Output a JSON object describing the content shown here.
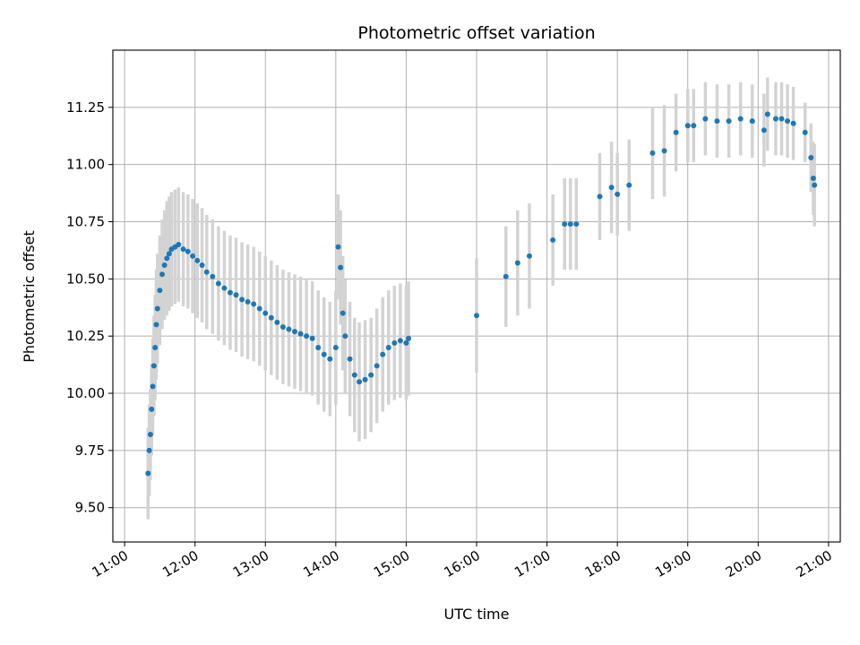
{
  "chart_data": {
    "type": "scatter",
    "title": "Photometric offset variation",
    "xlabel": "UTC time",
    "ylabel": "Photometric offset",
    "xlim": [
      "10:50",
      "21:10"
    ],
    "ylim": [
      9.35,
      11.5
    ],
    "x_ticks": [
      "11:00",
      "12:00",
      "13:00",
      "14:00",
      "15:00",
      "16:00",
      "17:00",
      "18:00",
      "19:00",
      "20:00",
      "21:00"
    ],
    "y_ticks": [
      9.5,
      9.75,
      10.0,
      10.25,
      10.5,
      10.75,
      11.0,
      11.25
    ],
    "grid": true,
    "colors": {
      "points": "#1f77b4",
      "error_bars": "#d3d3d3"
    },
    "series": [
      {
        "style": "points with error bars",
        "points": [
          {
            "x": "11:20",
            "y": 9.65,
            "err": 0.2
          },
          {
            "x": "11:21",
            "y": 9.75,
            "err": 0.2
          },
          {
            "x": "11:22",
            "y": 9.82,
            "err": 0.2
          },
          {
            "x": "11:23",
            "y": 9.93,
            "err": 0.2
          },
          {
            "x": "11:24",
            "y": 10.03,
            "err": 0.21
          },
          {
            "x": "11:25",
            "y": 10.12,
            "err": 0.22
          },
          {
            "x": "11:26",
            "y": 10.2,
            "err": 0.23
          },
          {
            "x": "11:27",
            "y": 10.3,
            "err": 0.24
          },
          {
            "x": "11:28",
            "y": 10.37,
            "err": 0.24
          },
          {
            "x": "11:30",
            "y": 10.45,
            "err": 0.24
          },
          {
            "x": "11:32",
            "y": 10.52,
            "err": 0.24
          },
          {
            "x": "11:34",
            "y": 10.56,
            "err": 0.24
          },
          {
            "x": "11:36",
            "y": 10.59,
            "err": 0.25
          },
          {
            "x": "11:38",
            "y": 10.61,
            "err": 0.25
          },
          {
            "x": "11:40",
            "y": 10.63,
            "err": 0.25
          },
          {
            "x": "11:43",
            "y": 10.64,
            "err": 0.25
          },
          {
            "x": "11:46",
            "y": 10.65,
            "err": 0.25
          },
          {
            "x": "11:50",
            "y": 10.63,
            "err": 0.25
          },
          {
            "x": "11:54",
            "y": 10.62,
            "err": 0.25
          },
          {
            "x": "11:58",
            "y": 10.6,
            "err": 0.25
          },
          {
            "x": "12:02",
            "y": 10.58,
            "err": 0.25
          },
          {
            "x": "12:06",
            "y": 10.56,
            "err": 0.25
          },
          {
            "x": "12:10",
            "y": 10.53,
            "err": 0.25
          },
          {
            "x": "12:15",
            "y": 10.51,
            "err": 0.25
          },
          {
            "x": "12:20",
            "y": 10.48,
            "err": 0.25
          },
          {
            "x": "12:25",
            "y": 10.46,
            "err": 0.25
          },
          {
            "x": "12:30",
            "y": 10.44,
            "err": 0.25
          },
          {
            "x": "12:35",
            "y": 10.43,
            "err": 0.25
          },
          {
            "x": "12:40",
            "y": 10.41,
            "err": 0.25
          },
          {
            "x": "12:45",
            "y": 10.4,
            "err": 0.25
          },
          {
            "x": "12:50",
            "y": 10.39,
            "err": 0.25
          },
          {
            "x": "12:55",
            "y": 10.37,
            "err": 0.25
          },
          {
            "x": "13:00",
            "y": 10.35,
            "err": 0.25
          },
          {
            "x": "13:05",
            "y": 10.33,
            "err": 0.25
          },
          {
            "x": "13:10",
            "y": 10.31,
            "err": 0.25
          },
          {
            "x": "13:15",
            "y": 10.29,
            "err": 0.25
          },
          {
            "x": "13:20",
            "y": 10.28,
            "err": 0.25
          },
          {
            "x": "13:25",
            "y": 10.27,
            "err": 0.25
          },
          {
            "x": "13:30",
            "y": 10.26,
            "err": 0.25
          },
          {
            "x": "13:35",
            "y": 10.25,
            "err": 0.25
          },
          {
            "x": "13:40",
            "y": 10.24,
            "err": 0.25
          },
          {
            "x": "13:45",
            "y": 10.2,
            "err": 0.25
          },
          {
            "x": "13:50",
            "y": 10.17,
            "err": 0.25
          },
          {
            "x": "13:55",
            "y": 10.15,
            "err": 0.25
          },
          {
            "x": "14:00",
            "y": 10.2,
            "err": 0.25
          },
          {
            "x": "14:02",
            "y": 10.64,
            "err": 0.23
          },
          {
            "x": "14:04",
            "y": 10.55,
            "err": 0.25
          },
          {
            "x": "14:06",
            "y": 10.35,
            "err": 0.25
          },
          {
            "x": "14:08",
            "y": 10.25,
            "err": 0.25
          },
          {
            "x": "14:12",
            "y": 10.15,
            "err": 0.25
          },
          {
            "x": "14:16",
            "y": 10.08,
            "err": 0.25
          },
          {
            "x": "14:20",
            "y": 10.05,
            "err": 0.26
          },
          {
            "x": "14:25",
            "y": 10.06,
            "err": 0.26
          },
          {
            "x": "14:30",
            "y": 10.08,
            "err": 0.25
          },
          {
            "x": "14:35",
            "y": 10.12,
            "err": 0.25
          },
          {
            "x": "14:40",
            "y": 10.17,
            "err": 0.25
          },
          {
            "x": "14:45",
            "y": 10.2,
            "err": 0.25
          },
          {
            "x": "14:50",
            "y": 10.22,
            "err": 0.25
          },
          {
            "x": "14:55",
            "y": 10.23,
            "err": 0.25
          },
          {
            "x": "15:00",
            "y": 10.22,
            "err": 0.25
          },
          {
            "x": "15:02",
            "y": 10.24,
            "err": 0.25
          },
          {
            "x": "16:00",
            "y": 10.34,
            "err": 0.25
          },
          {
            "x": "16:25",
            "y": 10.51,
            "err": 0.22
          },
          {
            "x": "16:35",
            "y": 10.57,
            "err": 0.23
          },
          {
            "x": "16:45",
            "y": 10.6,
            "err": 0.23
          },
          {
            "x": "17:05",
            "y": 10.67,
            "err": 0.2
          },
          {
            "x": "17:15",
            "y": 10.74,
            "err": 0.2
          },
          {
            "x": "17:20",
            "y": 10.74,
            "err": 0.2
          },
          {
            "x": "17:25",
            "y": 10.74,
            "err": 0.2
          },
          {
            "x": "17:45",
            "y": 10.86,
            "err": 0.19
          },
          {
            "x": "17:55",
            "y": 10.9,
            "err": 0.2
          },
          {
            "x": "18:00",
            "y": 10.87,
            "err": 0.18
          },
          {
            "x": "18:10",
            "y": 10.91,
            "err": 0.2
          },
          {
            "x": "18:30",
            "y": 11.05,
            "err": 0.2
          },
          {
            "x": "18:40",
            "y": 11.06,
            "err": 0.2
          },
          {
            "x": "18:50",
            "y": 11.14,
            "err": 0.17
          },
          {
            "x": "19:00",
            "y": 11.17,
            "err": 0.16
          },
          {
            "x": "19:05",
            "y": 11.17,
            "err": 0.16
          },
          {
            "x": "19:15",
            "y": 11.2,
            "err": 0.16
          },
          {
            "x": "19:25",
            "y": 11.19,
            "err": 0.16
          },
          {
            "x": "19:35",
            "y": 11.19,
            "err": 0.16
          },
          {
            "x": "19:45",
            "y": 11.2,
            "err": 0.16
          },
          {
            "x": "19:55",
            "y": 11.19,
            "err": 0.16
          },
          {
            "x": "20:05",
            "y": 11.15,
            "err": 0.16
          },
          {
            "x": "20:08",
            "y": 11.22,
            "err": 0.16
          },
          {
            "x": "20:15",
            "y": 11.2,
            "err": 0.16
          },
          {
            "x": "20:20",
            "y": 11.2,
            "err": 0.16
          },
          {
            "x": "20:25",
            "y": 11.19,
            "err": 0.16
          },
          {
            "x": "20:30",
            "y": 11.18,
            "err": 0.16
          },
          {
            "x": "20:40",
            "y": 11.14,
            "err": 0.13
          },
          {
            "x": "20:45",
            "y": 11.03,
            "err": 0.15
          },
          {
            "x": "20:47",
            "y": 10.94,
            "err": 0.16
          },
          {
            "x": "20:48",
            "y": 10.91,
            "err": 0.18
          }
        ]
      }
    ]
  }
}
